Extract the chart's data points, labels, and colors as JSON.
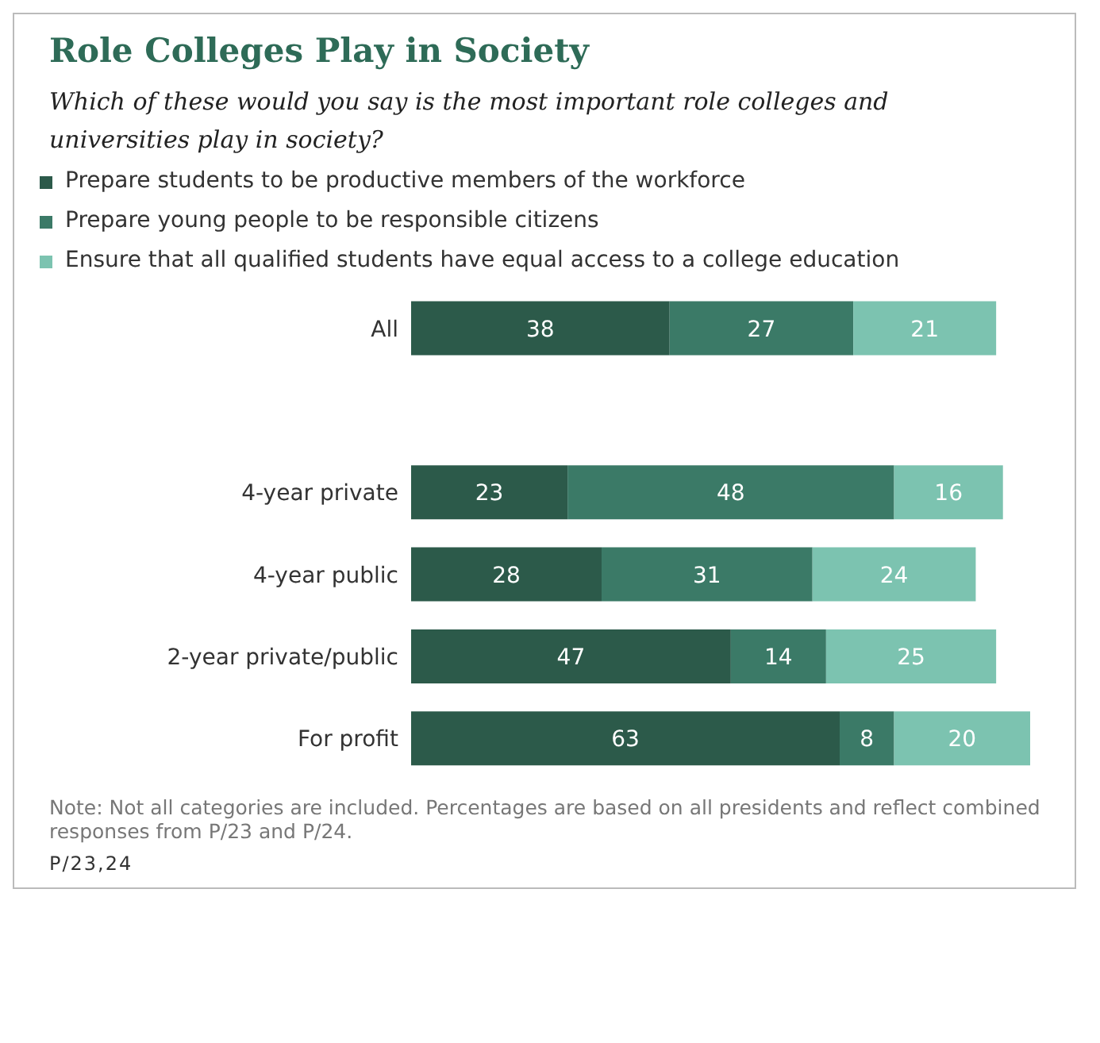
{
  "chart_data": {
    "type": "bar",
    "orientation": "horizontal",
    "stacked": true,
    "data_labels": true,
    "legend": "top",
    "title": "Role Colleges Play in Society",
    "subtitle": "Which of these would you say is the most important role colleges and universities play in society?",
    "categories": [
      "All",
      null,
      "4-year private",
      "4-year public",
      "2-year private/public",
      "For profit"
    ],
    "series": [
      {
        "name": "Prepare students to be productive members of the workforce",
        "color": "#2c5a4a",
        "values": [
          38,
          null,
          23,
          28,
          47,
          63
        ]
      },
      {
        "name": "Prepare young people to be responsible citizens",
        "color": "#3b7a67",
        "values": [
          27,
          null,
          48,
          31,
          14,
          8
        ]
      },
      {
        "name": "Ensure that all qualified students have equal access to a college education",
        "color": "#7cc3b0",
        "values": [
          21,
          null,
          16,
          24,
          25,
          20
        ]
      }
    ],
    "annotations": [
      "Note: Not all categories are included. Percentages are based on all presidents and reflect combined responses from P/23 and P/24.",
      "P/23,24"
    ]
  }
}
